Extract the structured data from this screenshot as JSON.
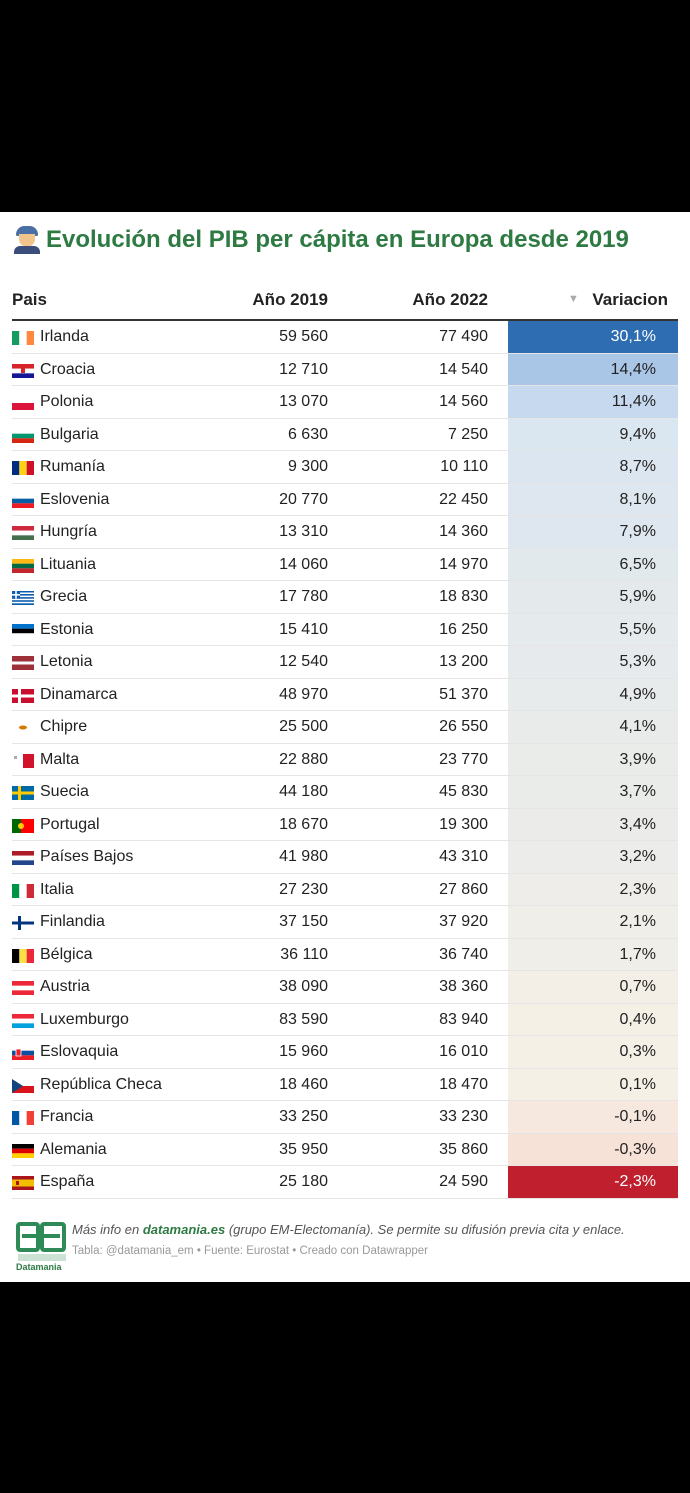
{
  "title": "Evolución del PIB per cápita en Europa desde 2019",
  "headers": {
    "pais": "Pais",
    "y2019": "Año 2019",
    "y2022": "Año 2022",
    "variacion": "Variacion",
    "sort_icon": "▼"
  },
  "colors": {
    "title": "#2e7a43",
    "positive_max": "#2f6db3",
    "negative": "#c0202e"
  },
  "rows": [
    {
      "country": "Irlanda",
      "y2019": "59 560",
      "y2022": "77 490",
      "variacion": "30,1%",
      "value": 30.1,
      "flag": "ireland-flag-icon"
    },
    {
      "country": "Croacia",
      "y2019": "12 710",
      "y2022": "14 540",
      "variacion": "14,4%",
      "value": 14.4,
      "flag": "croatia-flag-icon"
    },
    {
      "country": "Polonia",
      "y2019": "13 070",
      "y2022": "14 560",
      "variacion": "11,4%",
      "value": 11.4,
      "flag": "poland-flag-icon"
    },
    {
      "country": "Bulgaria",
      "y2019": "6 630",
      "y2022": "7 250",
      "variacion": "9,4%",
      "value": 9.4,
      "flag": "bulgaria-flag-icon"
    },
    {
      "country": "Rumanía",
      "y2019": "9 300",
      "y2022": "10 110",
      "variacion": "8,7%",
      "value": 8.7,
      "flag": "romania-flag-icon"
    },
    {
      "country": "Eslovenia",
      "y2019": "20 770",
      "y2022": "22 450",
      "variacion": "8,1%",
      "value": 8.1,
      "flag": "slovenia-flag-icon"
    },
    {
      "country": "Hungría",
      "y2019": "13 310",
      "y2022": "14 360",
      "variacion": "7,9%",
      "value": 7.9,
      "flag": "hungary-flag-icon"
    },
    {
      "country": "Lituania",
      "y2019": "14 060",
      "y2022": "14 970",
      "variacion": "6,5%",
      "value": 6.5,
      "flag": "lithuania-flag-icon"
    },
    {
      "country": "Grecia",
      "y2019": "17 780",
      "y2022": "18 830",
      "variacion": "5,9%",
      "value": 5.9,
      "flag": "greece-flag-icon"
    },
    {
      "country": "Estonia",
      "y2019": "15 410",
      "y2022": "16 250",
      "variacion": "5,5%",
      "value": 5.5,
      "flag": "estonia-flag-icon"
    },
    {
      "country": "Letonia",
      "y2019": "12 540",
      "y2022": "13 200",
      "variacion": "5,3%",
      "value": 5.3,
      "flag": "latvia-flag-icon"
    },
    {
      "country": "Dinamarca",
      "y2019": "48 970",
      "y2022": "51 370",
      "variacion": "4,9%",
      "value": 4.9,
      "flag": "denmark-flag-icon"
    },
    {
      "country": "Chipre",
      "y2019": "25 500",
      "y2022": "26 550",
      "variacion": "4,1%",
      "value": 4.1,
      "flag": "cyprus-flag-icon"
    },
    {
      "country": "Malta",
      "y2019": "22 880",
      "y2022": "23 770",
      "variacion": "3,9%",
      "value": 3.9,
      "flag": "malta-flag-icon"
    },
    {
      "country": "Suecia",
      "y2019": "44 180",
      "y2022": "45 830",
      "variacion": "3,7%",
      "value": 3.7,
      "flag": "sweden-flag-icon"
    },
    {
      "country": "Portugal",
      "y2019": "18 670",
      "y2022": "19 300",
      "variacion": "3,4%",
      "value": 3.4,
      "flag": "portugal-flag-icon"
    },
    {
      "country": "Países Bajos",
      "y2019": "41 980",
      "y2022": "43 310",
      "variacion": "3,2%",
      "value": 3.2,
      "flag": "netherlands-flag-icon"
    },
    {
      "country": "Italia",
      "y2019": "27 230",
      "y2022": "27 860",
      "variacion": "2,3%",
      "value": 2.3,
      "flag": "italy-flag-icon"
    },
    {
      "country": "Finlandia",
      "y2019": "37 150",
      "y2022": "37 920",
      "variacion": "2,1%",
      "value": 2.1,
      "flag": "finland-flag-icon"
    },
    {
      "country": "Bélgica",
      "y2019": "36 110",
      "y2022": "36 740",
      "variacion": "1,7%",
      "value": 1.7,
      "flag": "belgium-flag-icon"
    },
    {
      "country": "Austria",
      "y2019": "38 090",
      "y2022": "38 360",
      "variacion": "0,7%",
      "value": 0.7,
      "flag": "austria-flag-icon"
    },
    {
      "country": "Luxemburgo",
      "y2019": "83 590",
      "y2022": "83 940",
      "variacion": "0,4%",
      "value": 0.4,
      "flag": "luxembourg-flag-icon"
    },
    {
      "country": "Eslovaquia",
      "y2019": "15 960",
      "y2022": "16 010",
      "variacion": "0,3%",
      "value": 0.3,
      "flag": "slovakia-flag-icon"
    },
    {
      "country": "República Checa",
      "y2019": "18 460",
      "y2022": "18 470",
      "variacion": "0,1%",
      "value": 0.1,
      "flag": "czechia-flag-icon"
    },
    {
      "country": "Francia",
      "y2019": "33 250",
      "y2022": "33 230",
      "variacion": "-0,1%",
      "value": -0.1,
      "flag": "france-flag-icon"
    },
    {
      "country": "Alemania",
      "y2019": "35 950",
      "y2022": "35 860",
      "variacion": "-0,3%",
      "value": -0.3,
      "flag": "germany-flag-icon"
    },
    {
      "country": "España",
      "y2019": "25 180",
      "y2022": "24 590",
      "variacion": "-2,3%",
      "value": -2.3,
      "flag": "spain-flag-icon"
    }
  ],
  "footer": {
    "line1_prefix": "Más info en ",
    "line1_link": "datamania.es",
    "line1_suffix": " (grupo EM-Electomanía). Se permite su difusión previa cita y enlace.",
    "line2": "Tabla: @datamania_em • Fuente: Eurostat • Creado con Datawrapper",
    "logo_text": "Datamania"
  }
}
